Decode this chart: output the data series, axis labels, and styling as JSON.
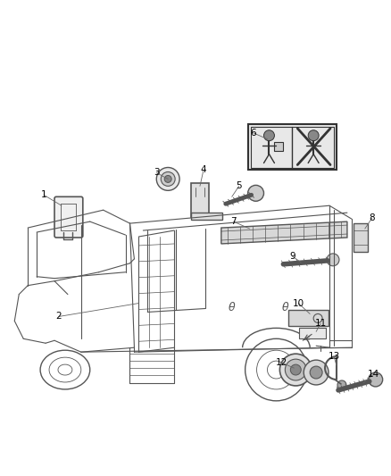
{
  "background_color": "#ffffff",
  "fig_width": 4.38,
  "fig_height": 5.33,
  "dpi": 100,
  "line_color": "#555555",
  "label_color": "#000000",
  "label_fontsize": 7.5
}
